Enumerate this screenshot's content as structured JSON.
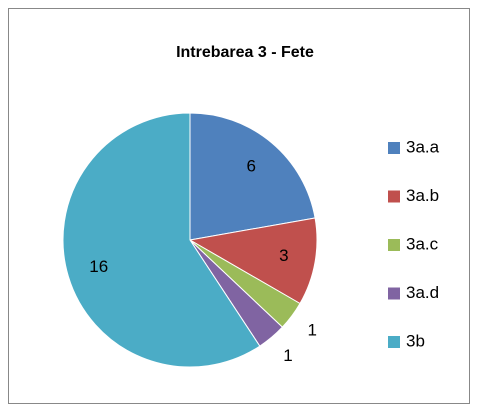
{
  "chart_data": {
    "type": "pie",
    "title": "Intrebarea 3 - Fete",
    "categories": [
      "3a.a",
      "3a.b",
      "3a.c",
      "3a.d",
      "3b"
    ],
    "values": [
      6,
      3,
      1,
      1,
      16
    ],
    "colors": [
      "#4f81bd",
      "#c0504d",
      "#9bbb59",
      "#8064a2",
      "#4bacc6"
    ],
    "legend": "right"
  }
}
